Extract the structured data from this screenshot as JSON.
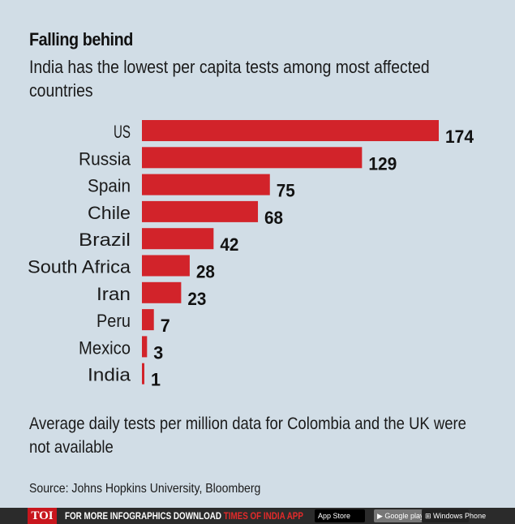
{
  "header": {
    "title": "Falling behind",
    "subtitle": "India has the lowest per capita tests among most affected countries"
  },
  "chart_data": {
    "type": "bar",
    "orientation": "horizontal",
    "title": "Falling behind",
    "subtitle": "India has the lowest per capita tests among most affected countries",
    "xlabel": "",
    "ylabel": "",
    "categories": [
      "US",
      "Russia",
      "Spain",
      "Chile",
      "Brazil",
      "South Africa",
      "Iran",
      "Peru",
      "Mexico",
      "India"
    ],
    "values": [
      174,
      129,
      75,
      68,
      42,
      28,
      23,
      7,
      3,
      1
    ],
    "xlim": [
      0,
      174
    ],
    "grid": false,
    "data_labels": true,
    "bar_color": "#d2232a"
  },
  "note": "Average daily tests per million data for Colombia and the UK were not available",
  "source": "Source: Johns Hopkins University, Bloomberg",
  "footer": {
    "logo": "TOI",
    "promo_text": "FOR MORE  INFOGRAPHICS DOWNLOAD ",
    "promo_highlight": "TIMES OF INDIA  APP",
    "app_store": " App Store",
    "google_play": "▶ Google play",
    "windows_phone": "⊞ Windows Phone"
  }
}
